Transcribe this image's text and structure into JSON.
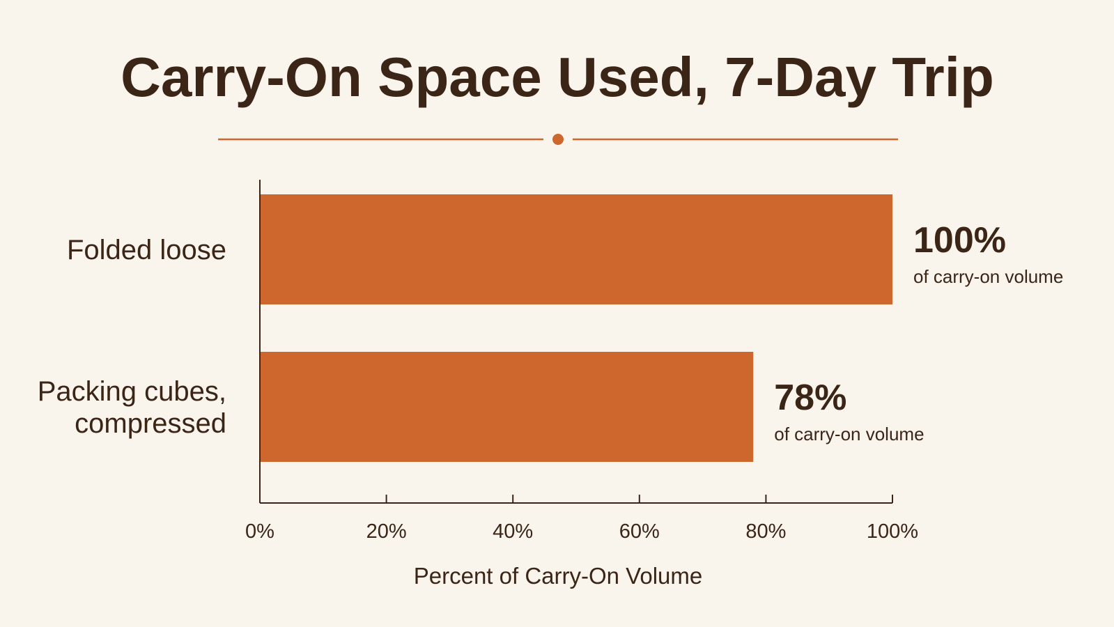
{
  "colors": {
    "background": "#f9f4ec",
    "bar": "#cd672e",
    "accent": "#cd672e",
    "text": "#3a2516",
    "axis": "#3a2516"
  },
  "chart_data": {
    "type": "bar",
    "orientation": "horizontal",
    "title": "Carry-On Space Used, 7-Day Trip",
    "xlabel": "Percent of Carry-On Volume",
    "ylabel": "",
    "categories": [
      [
        "Folded loose"
      ],
      [
        "Packing cubes,",
        "compressed"
      ]
    ],
    "values": [
      100,
      78
    ],
    "value_labels": [
      "100%",
      "78%"
    ],
    "value_sublabel": "of carry-on volume",
    "xlim": [
      0,
      100
    ],
    "xticks": [
      0,
      20,
      40,
      60,
      80,
      100
    ],
    "xtick_labels": [
      "0%",
      "20%",
      "40%",
      "60%",
      "80%",
      "100%"
    ],
    "grid": false,
    "legend": "none"
  }
}
